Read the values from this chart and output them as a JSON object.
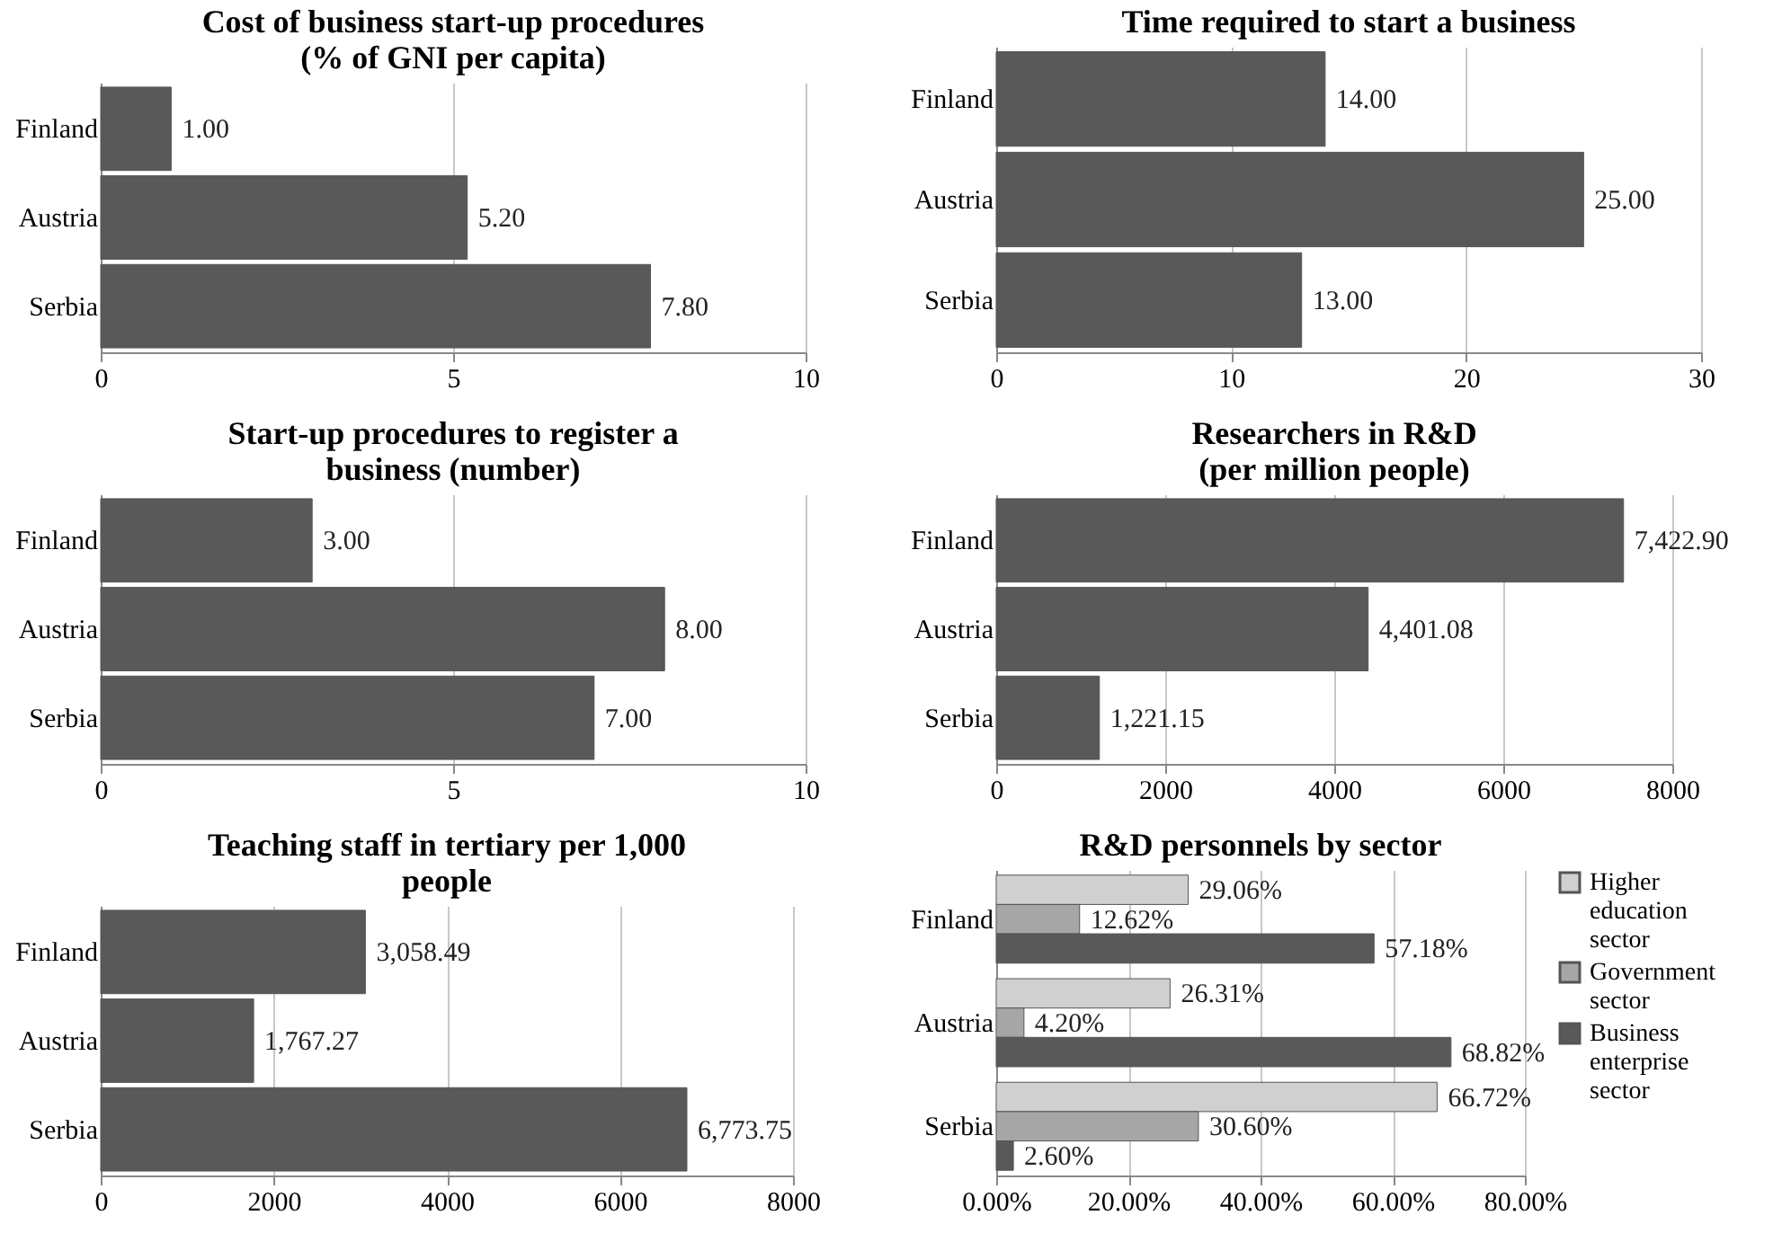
{
  "chart_data": [
    {
      "type": "bar",
      "orientation": "horizontal",
      "title": "Cost of business start-up procedures (% of GNI per capita)",
      "categories": [
        "Finland",
        "Austria",
        "Serbia"
      ],
      "values": [
        1.0,
        5.2,
        7.8
      ],
      "value_labels": [
        "1.00",
        "5.20",
        "7.80"
      ],
      "color": "#595959",
      "xlim": [
        0,
        10
      ],
      "xticks": [
        0,
        5,
        10
      ],
      "grid": "x"
    },
    {
      "type": "bar",
      "orientation": "horizontal",
      "title": "Time required to start a business",
      "categories": [
        "Finland",
        "Austria",
        "Serbia"
      ],
      "values": [
        14,
        25,
        13
      ],
      "value_labels": [
        "14.00",
        "25.00",
        "13.00"
      ],
      "color": "#595959",
      "xlim": [
        0,
        30
      ],
      "xticks": [
        0,
        10,
        20,
        30
      ],
      "grid": "x"
    },
    {
      "type": "bar",
      "orientation": "horizontal",
      "title": "Start-up procedures to register a business (number)",
      "categories": [
        "Finland",
        "Austria",
        "Serbia"
      ],
      "values": [
        3,
        8,
        7
      ],
      "value_labels": [
        "3.00",
        "8.00",
        "7.00"
      ],
      "color": "#595959",
      "xlim": [
        0,
        10
      ],
      "xticks": [
        0,
        5,
        10
      ],
      "grid": "x"
    },
    {
      "type": "bar",
      "orientation": "horizontal",
      "title": "Researchers in R&D (per million people)",
      "categories": [
        "Finland",
        "Austria",
        "Serbia"
      ],
      "values": [
        7422.9,
        4401.08,
        1221.15
      ],
      "value_labels": [
        "7,422.90",
        "4,401.08",
        "1,221.15"
      ],
      "color": "#595959",
      "xlim": [
        0,
        8000
      ],
      "xticks": [
        0,
        2000,
        4000,
        6000,
        8000
      ],
      "grid": "x"
    },
    {
      "type": "bar",
      "orientation": "horizontal",
      "title": "Teaching staff in tertiary per 1,000 people",
      "categories": [
        "Finland",
        "Austria",
        "Serbia"
      ],
      "values": [
        3058.49,
        1767.27,
        6773.75
      ],
      "value_labels": [
        "3,058.49",
        "1,767.27",
        "6,773.75"
      ],
      "color": "#595959",
      "xlim": [
        0,
        8000
      ],
      "xticks": [
        0,
        2000,
        4000,
        6000,
        8000
      ],
      "grid": "x"
    },
    {
      "type": "bar",
      "orientation": "horizontal",
      "title": "R&D personnels by sector",
      "categories": [
        "Finland",
        "Austria",
        "Serbia"
      ],
      "series": [
        {
          "name": "Higher education sector",
          "color": "#d0d0d0",
          "values": [
            29.06,
            26.31,
            66.72
          ],
          "value_labels": [
            "29.06%",
            "26.31%",
            "66.72%"
          ]
        },
        {
          "name": "Government sector",
          "color": "#a6a6a6",
          "values": [
            12.62,
            4.2,
            30.6
          ],
          "value_labels": [
            "12.62%",
            "4.20%",
            "30.60%"
          ]
        },
        {
          "name": "Business enterprise sector",
          "color": "#595959",
          "values": [
            57.18,
            68.82,
            2.6
          ],
          "value_labels": [
            "57.18%",
            "68.82%",
            "2.60%"
          ]
        }
      ],
      "xlim": [
        0,
        80
      ],
      "xticks": [
        {
          "value": 0,
          "label": "0.00%"
        },
        {
          "value": 20,
          "label": "20.00%"
        },
        {
          "value": 40,
          "label": "40.00%"
        },
        {
          "value": 60,
          "label": "60.00%"
        },
        {
          "value": 80,
          "label": "80.00%"
        }
      ],
      "grid": "x",
      "legend": "right"
    }
  ]
}
